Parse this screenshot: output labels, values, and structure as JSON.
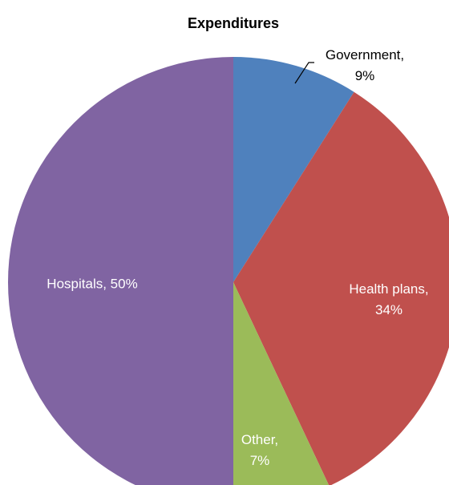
{
  "chart_data": {
    "type": "pie",
    "title": "Expenditures",
    "categories": [
      "Government",
      "Health plans",
      "Other",
      "Hospitals"
    ],
    "values": [
      9,
      34,
      7,
      50
    ],
    "value_labels": [
      "Government, 9%",
      "Health plans, 34%",
      "Other, 7%",
      "Hospitals, 50%"
    ],
    "colors": [
      "#4f81bd",
      "#c0504d",
      "#9bbb59",
      "#8064a2"
    ]
  }
}
